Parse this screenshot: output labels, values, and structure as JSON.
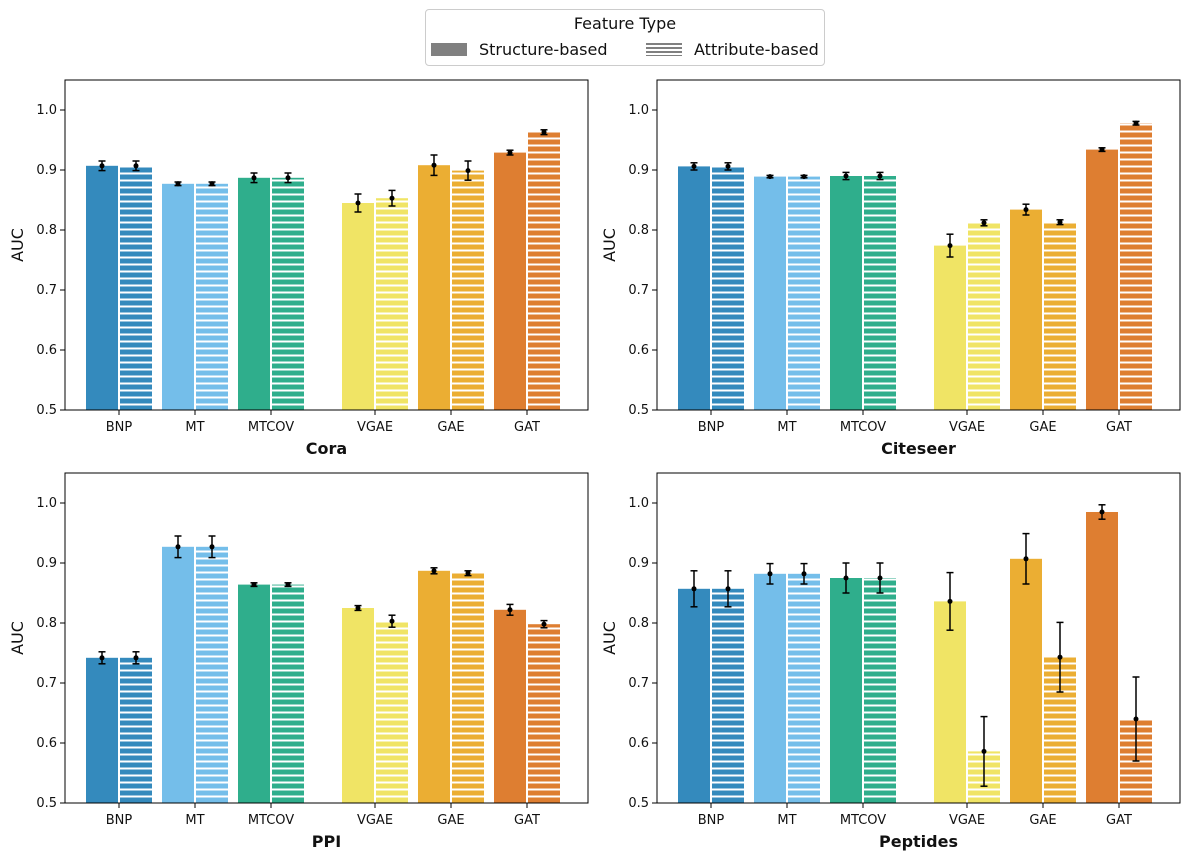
{
  "legend": {
    "title": "Feature Type",
    "items": [
      {
        "label": "Structure-based",
        "style": "solid"
      },
      {
        "label": "Attribute-based",
        "style": "hatched"
      }
    ]
  },
  "colors": {
    "BNP": "#348ABD",
    "MT": "#74BEEA",
    "MTCOV": "#2FAE8C",
    "VGAE": "#F0E465",
    "GAE": "#EBAE33",
    "GAT": "#DE7E31"
  },
  "chart_data": [
    {
      "type": "bar",
      "title": "Cora",
      "xlabel": "Cora",
      "ylabel": "AUC",
      "ylim": [
        0.5,
        1.05
      ],
      "yticks": [
        "0.5",
        "0.6",
        "0.7",
        "0.8",
        "0.9",
        "1.0"
      ],
      "categories": [
        "BNP",
        "MT",
        "MTCOV",
        "VGAE",
        "GAE",
        "GAT"
      ],
      "series": [
        {
          "name": "Structure-based",
          "values": [
            0.907,
            0.877,
            0.887,
            0.845,
            0.908,
            0.929
          ],
          "errors": [
            0.008,
            0.003,
            0.008,
            0.015,
            0.017,
            0.004
          ]
        },
        {
          "name": "Attribute-based",
          "values": [
            0.907,
            0.877,
            0.887,
            0.853,
            0.899,
            0.963
          ],
          "errors": [
            0.008,
            0.003,
            0.008,
            0.013,
            0.016,
            0.004
          ]
        }
      ]
    },
    {
      "type": "bar",
      "title": "Citeseer",
      "xlabel": "Citeseer",
      "ylabel": "AUC",
      "ylim": [
        0.5,
        1.05
      ],
      "yticks": [
        "0.5",
        "0.6",
        "0.7",
        "0.8",
        "0.9",
        "1.0"
      ],
      "categories": [
        "BNP",
        "MT",
        "MTCOV",
        "VGAE",
        "GAE",
        "GAT"
      ],
      "series": [
        {
          "name": "Structure-based",
          "values": [
            0.906,
            0.889,
            0.89,
            0.774,
            0.834,
            0.934
          ],
          "errors": [
            0.006,
            0.002,
            0.006,
            0.019,
            0.009,
            0.003
          ]
        },
        {
          "name": "Attribute-based",
          "values": [
            0.906,
            0.889,
            0.89,
            0.812,
            0.813,
            0.978
          ],
          "errors": [
            0.006,
            0.002,
            0.006,
            0.005,
            0.004,
            0.003
          ]
        }
      ]
    },
    {
      "type": "bar",
      "title": "PPI",
      "xlabel": "PPI",
      "ylabel": "AUC",
      "ylim": [
        0.5,
        1.05
      ],
      "yticks": [
        "0.5",
        "0.6",
        "0.7",
        "0.8",
        "0.9",
        "1.0"
      ],
      "categories": [
        "BNP",
        "MT",
        "MTCOV",
        "VGAE",
        "GAE",
        "GAT"
      ],
      "series": [
        {
          "name": "Structure-based",
          "values": [
            0.742,
            0.927,
            0.864,
            0.825,
            0.887,
            0.822
          ],
          "errors": [
            0.01,
            0.018,
            0.003,
            0.004,
            0.005,
            0.009
          ]
        },
        {
          "name": "Attribute-based",
          "values": [
            0.742,
            0.927,
            0.864,
            0.803,
            0.883,
            0.798
          ],
          "errors": [
            0.01,
            0.018,
            0.003,
            0.01,
            0.004,
            0.006
          ]
        }
      ]
    },
    {
      "type": "bar",
      "title": "Peptides",
      "xlabel": "Peptides",
      "ylabel": "AUC",
      "ylim": [
        0.5,
        1.05
      ],
      "yticks": [
        "0.5",
        "0.6",
        "0.7",
        "0.8",
        "0.9",
        "1.0"
      ],
      "categories": [
        "BNP",
        "MT",
        "MTCOV",
        "VGAE",
        "GAE",
        "GAT"
      ],
      "series": [
        {
          "name": "Structure-based",
          "values": [
            0.857,
            0.882,
            0.875,
            0.836,
            0.907,
            0.985
          ],
          "errors": [
            0.03,
            0.017,
            0.025,
            0.048,
            0.042,
            0.012
          ]
        },
        {
          "name": "Attribute-based",
          "values": [
            0.857,
            0.882,
            0.875,
            0.586,
            0.743,
            0.64
          ],
          "errors": [
            0.03,
            0.017,
            0.025,
            0.058,
            0.058,
            0.07
          ]
        }
      ]
    }
  ]
}
